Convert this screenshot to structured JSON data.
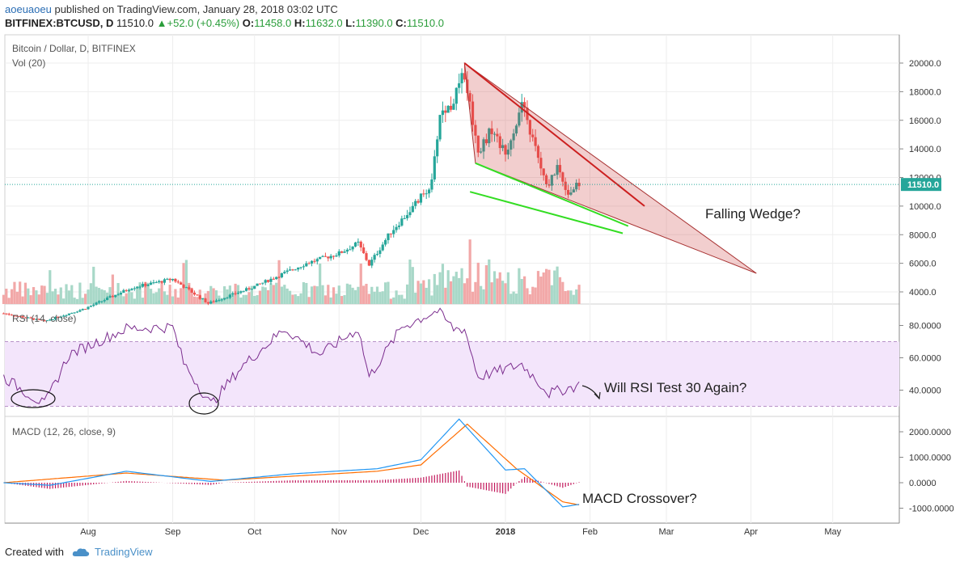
{
  "header": {
    "author": "aoeuaoeu",
    "published": "published on TradingView.com, January 28, 2018 03:02 UTC",
    "symbol": "BITFINEX:BTCUSD, D",
    "last": "11510.0",
    "change": "+52.0 (+0.45%)",
    "o_label": "O:",
    "o_value": "11458.0",
    "h_label": "H:",
    "h_value": "11632.0",
    "l_label": "L:",
    "l_value": "11390.0",
    "c_label": "C:",
    "c_value": "11510.0"
  },
  "main_panel": {
    "title": "Bitcoin / Dollar, D, BITFINEX",
    "volume_label": "Vol (20)"
  },
  "rsi_panel": {
    "title": "RSI (14, close)"
  },
  "macd_panel": {
    "title": "MACD (12, 26, close, 9)"
  },
  "footer": {
    "created": "Created with",
    "brand": "TradingView"
  },
  "colors": {
    "up": "#26a69a",
    "down": "#ef5350",
    "rsi": "#7b2d8e",
    "macd": "#2196f3",
    "signal": "#ff6d00",
    "hist": "#c2185b",
    "wedge": "#cc1f1f",
    "support": "#33dd22"
  },
  "chart_data": {
    "type": "line",
    "x_axis": {
      "ticks": [
        "Aug",
        "Sep",
        "Oct",
        "Nov",
        "Dec",
        "2018",
        "Feb",
        "Mar",
        "Apr",
        "May"
      ]
    },
    "price": {
      "axis_ticks": [
        "20000.0",
        "18000.0",
        "16000.0",
        "14000.0",
        "12000.0",
        "10000.0",
        "8000.0",
        "6000.0",
        "4000.0"
      ],
      "last_price_label": "11510.0",
      "series_anchors": [
        {
          "date": "2017-07-01",
          "close": 2500
        },
        {
          "date": "2017-07-16",
          "close": 1950
        },
        {
          "date": "2017-07-31",
          "close": 2850
        },
        {
          "date": "2017-08-17",
          "close": 4300
        },
        {
          "date": "2017-09-01",
          "close": 4900
        },
        {
          "date": "2017-09-14",
          "close": 3200
        },
        {
          "date": "2017-09-30",
          "close": 4300
        },
        {
          "date": "2017-10-20",
          "close": 6000
        },
        {
          "date": "2017-11-01",
          "close": 6700
        },
        {
          "date": "2017-11-08",
          "close": 7400
        },
        {
          "date": "2017-11-12",
          "close": 5900
        },
        {
          "date": "2017-11-20",
          "close": 8200
        },
        {
          "date": "2017-11-28",
          "close": 9900
        },
        {
          "date": "2017-12-05",
          "close": 11600
        },
        {
          "date": "2017-12-08",
          "close": 16500
        },
        {
          "date": "2017-12-12",
          "close": 17000
        },
        {
          "date": "2017-12-17",
          "close": 19300
        },
        {
          "date": "2017-12-22",
          "close": 13800
        },
        {
          "date": "2017-12-27",
          "close": 15400
        },
        {
          "date": "2018-01-01",
          "close": 13600
        },
        {
          "date": "2018-01-07",
          "close": 17100
        },
        {
          "date": "2018-01-12",
          "close": 14000
        },
        {
          "date": "2018-01-16",
          "close": 11300
        },
        {
          "date": "2018-01-20",
          "close": 12800
        },
        {
          "date": "2018-01-24",
          "close": 10900
        },
        {
          "date": "2018-01-28",
          "close": 11510
        }
      ],
      "falling_wedge": {
        "upper": [
          {
            "date": "2017-12-17",
            "price": 20000
          },
          {
            "date": "2018-02-21",
            "price": 10000
          }
        ],
        "lower": [
          {
            "date": "2017-12-21",
            "price": 13000
          },
          {
            "date": "2018-02-15",
            "price": 8600
          }
        ],
        "apex": {
          "date": "2018-04-03",
          "price": 5300
        }
      },
      "support_line": [
        {
          "date": "2017-12-19",
          "price": 11000
        },
        {
          "date": "2018-02-13",
          "price": 8100
        }
      ],
      "annotation": "Falling Wedge?"
    },
    "rsi": {
      "axis_ticks": [
        "80.0000",
        "60.0000",
        "40.0000"
      ],
      "band": [
        30,
        70
      ],
      "series_anchors": [
        {
          "date": "2017-07-01",
          "value": 48
        },
        {
          "date": "2017-07-16",
          "value": 31
        },
        {
          "date": "2017-07-25",
          "value": 62
        },
        {
          "date": "2017-08-15",
          "value": 78
        },
        {
          "date": "2017-09-01",
          "value": 79
        },
        {
          "date": "2017-09-05",
          "value": 57
        },
        {
          "date": "2017-09-15",
          "value": 31
        },
        {
          "date": "2017-09-26",
          "value": 54
        },
        {
          "date": "2017-10-12",
          "value": 78
        },
        {
          "date": "2017-10-25",
          "value": 62
        },
        {
          "date": "2017-11-08",
          "value": 78
        },
        {
          "date": "2017-11-12",
          "value": 48
        },
        {
          "date": "2017-11-24",
          "value": 79
        },
        {
          "date": "2017-12-07",
          "value": 89
        },
        {
          "date": "2017-12-13",
          "value": 78
        },
        {
          "date": "2017-12-17",
          "value": 78
        },
        {
          "date": "2017-12-22",
          "value": 48
        },
        {
          "date": "2018-01-07",
          "value": 56
        },
        {
          "date": "2018-01-17",
          "value": 38
        },
        {
          "date": "2018-01-28",
          "value": 43
        }
      ],
      "annotation": "Will RSI Test 30 Again?"
    },
    "macd": {
      "axis_ticks": [
        "2000.0000",
        "1000.0000",
        "0.0000",
        "-1000.0000"
      ],
      "macd_anchors": [
        {
          "date": "2017-07-01",
          "value": 0
        },
        {
          "date": "2017-07-18",
          "value": -100
        },
        {
          "date": "2017-08-15",
          "value": 450
        },
        {
          "date": "2017-09-15",
          "value": 50
        },
        {
          "date": "2017-10-15",
          "value": 350
        },
        {
          "date": "2017-11-15",
          "value": 550
        },
        {
          "date": "2017-12-01",
          "value": 900
        },
        {
          "date": "2017-12-15",
          "value": 2500
        },
        {
          "date": "2018-01-01",
          "value": 500
        },
        {
          "date": "2018-01-08",
          "value": 550
        },
        {
          "date": "2018-01-22",
          "value": -950
        },
        {
          "date": "2018-01-28",
          "value": -850
        }
      ],
      "signal_anchors": [
        {
          "date": "2017-07-01",
          "value": 0
        },
        {
          "date": "2017-08-15",
          "value": 380
        },
        {
          "date": "2017-09-20",
          "value": 100
        },
        {
          "date": "2017-11-15",
          "value": 450
        },
        {
          "date": "2017-12-01",
          "value": 700
        },
        {
          "date": "2017-12-18",
          "value": 2300
        },
        {
          "date": "2018-01-05",
          "value": 550
        },
        {
          "date": "2018-01-22",
          "value": -750
        },
        {
          "date": "2018-01-28",
          "value": -870
        }
      ],
      "annotation": "MACD Crossover?"
    }
  }
}
